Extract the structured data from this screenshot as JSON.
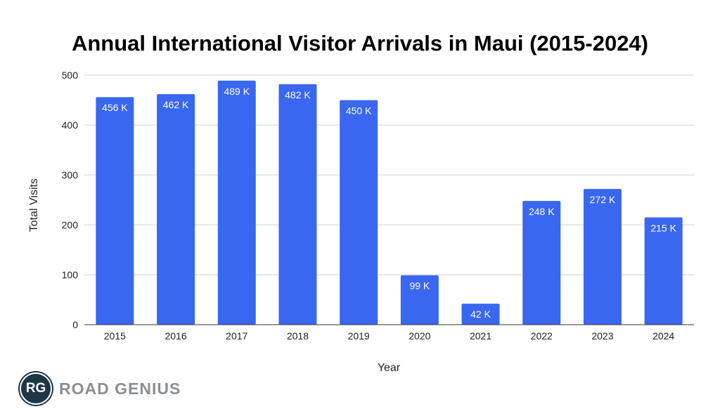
{
  "chart_data": {
    "type": "bar",
    "title": "Annual International Visitor Arrivals in Maui (2015-2024)",
    "xlabel": "Year",
    "ylabel": "Total Visits",
    "categories": [
      "2015",
      "2016",
      "2017",
      "2018",
      "2019",
      "2020",
      "2021",
      "2022",
      "2023",
      "2024"
    ],
    "values": [
      456,
      462,
      489,
      482,
      450,
      99,
      42,
      248,
      272,
      215
    ],
    "data_labels": [
      "456 K",
      "462 K",
      "489 K",
      "482 K",
      "450 K",
      "99 K",
      "42 K",
      "248 K",
      "272 K",
      "215 K"
    ],
    "yticks": [
      0,
      100,
      200,
      300,
      400,
      500
    ],
    "ylim": [
      0,
      500
    ],
    "grid": true,
    "bar_color": "#3a67ef"
  },
  "logo": {
    "initials": "RG",
    "name": "ROAD GENIUS"
  }
}
